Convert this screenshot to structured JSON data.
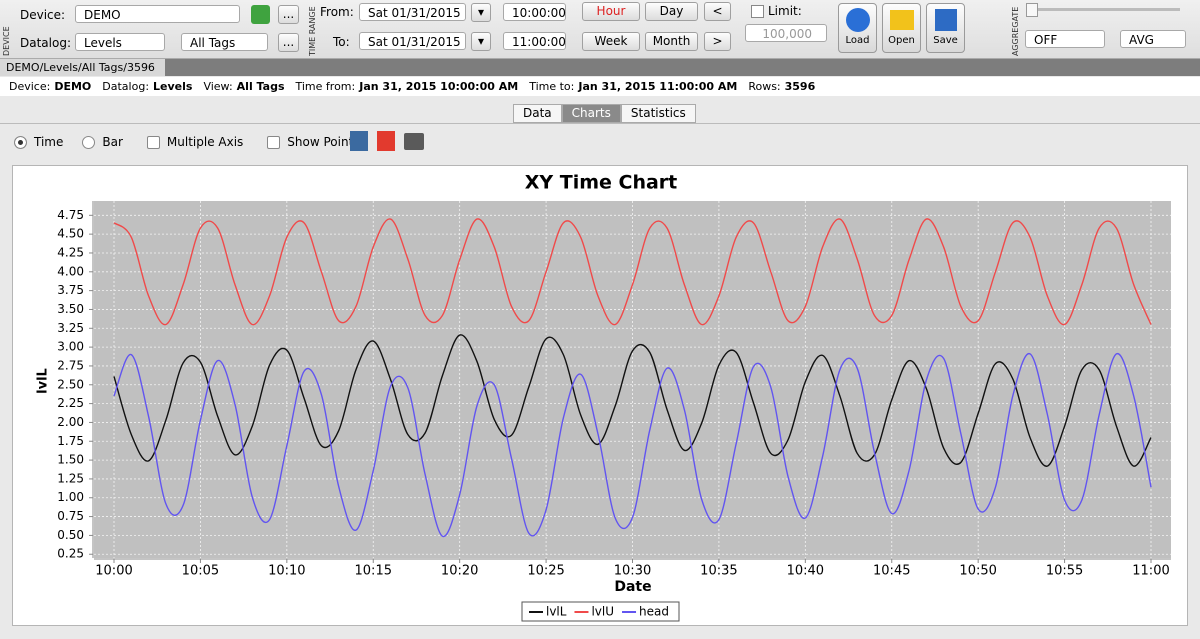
{
  "toolbar": {
    "device_section": "DEVICE",
    "device_label": "Device:",
    "device": "DEMO",
    "datalog_label": "Datalog:",
    "datalog": "Levels",
    "tags": "All Tags",
    "browse": "...",
    "time_range": "TIME RANGE",
    "from_label": "From:",
    "from_date": "Sat 01/31/2015",
    "from_time": "10:00:00",
    "to_label": "To:",
    "to_date": "Sat 01/31/2015",
    "to_time": "11:00:00",
    "hour": "Hour",
    "day": "Day",
    "prev": "<",
    "week": "Week",
    "month": "Month",
    "next": ">",
    "limit_label": "Limit:",
    "limit": "100,000",
    "load": "Load",
    "open": "Open",
    "save": "Save",
    "aggregate": "AGGREGATE",
    "agg_mode": "OFF",
    "agg_func": "AVG"
  },
  "tab": "DEMO/Levels/All Tags/3596",
  "info": [
    {
      "label": "Device:",
      "value": "DEMO"
    },
    {
      "label": "Datalog:",
      "value": "Levels"
    },
    {
      "label": "View:",
      "value": "All Tags"
    },
    {
      "label": "Time from:",
      "value": "Jan 31, 2015 10:00:00 AM"
    },
    {
      "label": "Time to:",
      "value": "Jan 31, 2015 11:00:00 AM"
    },
    {
      "label": "Rows:",
      "value": "3596"
    }
  ],
  "subtabs": [
    "Data",
    "Charts",
    "Statistics"
  ],
  "options": [
    "Time",
    "Bar",
    "Multiple Axis",
    "Show Points"
  ],
  "chart_data": {
    "type": "line",
    "title": "XY Time Chart",
    "x_label": "Date",
    "y_label": "lvlL",
    "grid": true,
    "x": [
      "10:00",
      "10:01",
      "10:02",
      "10:03",
      "10:04",
      "10:05",
      "10:06",
      "10:07",
      "10:08",
      "10:09",
      "10:10",
      "10:11",
      "10:12",
      "10:13",
      "10:14",
      "10:15",
      "10:16",
      "10:17",
      "10:18",
      "10:19",
      "10:20",
      "10:21",
      "10:22",
      "10:23",
      "10:24",
      "10:25",
      "10:26",
      "10:27",
      "10:28",
      "10:29",
      "10:30",
      "10:31",
      "10:32",
      "10:33",
      "10:34",
      "10:35",
      "10:36",
      "10:37",
      "10:38",
      "10:39",
      "10:40",
      "10:41",
      "10:42",
      "10:43",
      "10:44",
      "10:45",
      "10:46",
      "10:47",
      "10:48",
      "10:49",
      "10:50",
      "10:51",
      "10:52",
      "10:53",
      "10:54",
      "10:55",
      "10:56",
      "10:57",
      "10:58",
      "10:59",
      "11:00"
    ],
    "xticks": [
      "10:00",
      "10:05",
      "10:10",
      "10:15",
      "10:20",
      "10:25",
      "10:30",
      "10:35",
      "10:40",
      "10:45",
      "10:50",
      "10:55",
      "11:00"
    ],
    "ylim": [
      0.2,
      4.94
    ],
    "yticks": [
      0.25,
      {
        "value": 0.5,
        "label": "0.50"
      },
      0.75,
      {
        "value": 1,
        "label": "1.00"
      },
      1.25,
      {
        "value": 1.5,
        "label": "1.50"
      },
      1.75,
      {
        "value": 2,
        "label": "2.00"
      },
      2.25,
      {
        "value": 2.5,
        "label": "2.50"
      },
      2.75,
      {
        "value": 3,
        "label": "3.00"
      },
      3.25,
      {
        "value": 3.5,
        "label": "3.50"
      },
      3.75,
      {
        "value": 4,
        "label": "4.00"
      },
      4.25,
      {
        "value": 4.5,
        "label": "4.50"
      },
      4.75
    ],
    "series": [
      {
        "name": "lvlL",
        "color": "#111111",
        "values": [
          2.61,
          1.84,
          1.49,
          2.03,
          2.79,
          2.8,
          2.08,
          1.57,
          1.95,
          2.76,
          2.96,
          2.32,
          1.69,
          1.89,
          2.7,
          3.08,
          2.57,
          1.84,
          1.86,
          2.62,
          3.16,
          2.81,
          2.04,
          1.83,
          2.47,
          3.11,
          2.9,
          2.1,
          1.71,
          2.22,
          2.95,
          2.93,
          2.17,
          1.63,
          1.99,
          2.76,
          2.93,
          2.26,
          1.59,
          1.77,
          2.54,
          2.89,
          2.35,
          1.59,
          1.57,
          2.3,
          2.82,
          2.45,
          1.66,
          1.47,
          2.12,
          2.78,
          2.58,
          1.8,
          1.42,
          1.95,
          2.7,
          2.7,
          1.95,
          1.42,
          1.8
        ]
      },
      {
        "name": "lvlU",
        "color": "#f04a4a",
        "values": [
          4.65,
          4.46,
          3.68,
          3.3,
          3.83,
          4.58,
          4.58,
          3.83,
          3.3,
          3.68,
          4.46,
          4.65,
          4.0,
          3.35,
          3.54,
          4.33,
          4.7,
          4.17,
          3.42,
          3.42,
          4.16,
          4.7,
          4.33,
          3.54,
          3.35,
          4.0,
          4.65,
          4.46,
          3.68,
          3.3,
          3.83,
          4.58,
          4.58,
          3.83,
          3.3,
          3.68,
          4.46,
          4.65,
          4.0,
          3.35,
          3.54,
          4.33,
          4.7,
          4.17,
          3.42,
          3.42,
          4.16,
          4.7,
          4.33,
          3.54,
          3.35,
          4.0,
          4.65,
          4.46,
          3.68,
          3.3,
          3.83,
          4.58,
          4.58,
          3.83,
          3.3
        ]
      },
      {
        "name": "head",
        "color": "#6255f0",
        "values": [
          2.35,
          2.9,
          2.08,
          0.92,
          0.9,
          2.03,
          2.82,
          2.24,
          1.01,
          0.71,
          1.69,
          2.68,
          2.37,
          1.15,
          0.57,
          1.36,
          2.48,
          2.46,
          1.31,
          0.49,
          1.04,
          2.22,
          2.5,
          1.52,
          0.53,
          0.84,
          2.06,
          2.64,
          1.85,
          0.73,
          0.74,
          1.9,
          2.72,
          2.17,
          0.98,
          0.71,
          1.72,
          2.74,
          2.47,
          1.28,
          0.73,
          1.55,
          2.7,
          2.72,
          1.6,
          0.79,
          1.36,
          2.56,
          2.85,
          1.85,
          0.85,
          1.14,
          2.35,
          2.91,
          2.11,
          0.97,
          0.97,
          2.1,
          2.91,
          2.35,
          1.14
        ]
      }
    ]
  }
}
